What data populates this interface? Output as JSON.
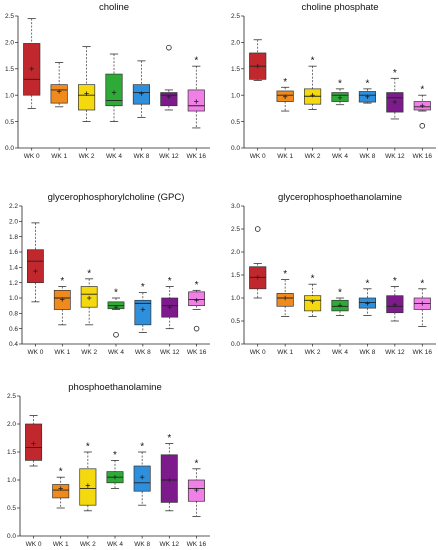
{
  "colors": {
    "WK 0": "#c0282d",
    "WK 1": "#f08a1c",
    "WK 2": "#f5d90f",
    "WK 4": "#2eaa37",
    "WK 8": "#2e8fdd",
    "WK 12": "#7d1a8c",
    "WK 16": "#f080e8"
  },
  "chart_data": [
    {
      "type": "box",
      "title": "choline",
      "categories": [
        "WK 0",
        "WK 1",
        "WK 2",
        "WK 4",
        "WK 8",
        "WK 12",
        "WK 16"
      ],
      "ylim": [
        0,
        2.5
      ],
      "yticks": [
        0,
        0.5,
        1,
        1.5,
        2,
        2.5
      ],
      "boxes": [
        {
          "min": 0.75,
          "q1": 1.0,
          "median": 1.3,
          "q3": 1.98,
          "max": 2.45,
          "mean": 1.5,
          "outliers": [],
          "significant": false
        },
        {
          "min": 0.78,
          "q1": 0.85,
          "median": 1.1,
          "q3": 1.2,
          "max": 1.62,
          "mean": 1.07,
          "outliers": [],
          "significant": false
        },
        {
          "min": 0.5,
          "q1": 0.72,
          "median": 1.0,
          "q3": 1.2,
          "max": 1.92,
          "mean": 1.03,
          "outliers": [],
          "significant": false
        },
        {
          "min": 0.5,
          "q1": 0.8,
          "median": 0.9,
          "q3": 1.4,
          "max": 1.78,
          "mean": 1.05,
          "outliers": [],
          "significant": false
        },
        {
          "min": 0.58,
          "q1": 0.83,
          "median": 1.05,
          "q3": 1.2,
          "max": 1.65,
          "mean": 1.03,
          "outliers": [],
          "significant": false
        },
        {
          "min": 0.72,
          "q1": 0.8,
          "median": 1.0,
          "q3": 1.05,
          "max": 1.1,
          "mean": 0.97,
          "outliers": [
            1.9
          ],
          "significant": false
        },
        {
          "min": 0.38,
          "q1": 0.7,
          "median": 0.8,
          "q3": 1.1,
          "max": 1.55,
          "mean": 0.88,
          "outliers": [],
          "significant": true
        }
      ]
    },
    {
      "type": "box",
      "title": "choline phosphate",
      "categories": [
        "WK 0",
        "WK 1",
        "WK 2",
        "WK 4",
        "WK 8",
        "WK 12",
        "WK 16"
      ],
      "ylim": [
        0,
        2.5
      ],
      "yticks": [
        0,
        0.5,
        1,
        1.5,
        2,
        2.5
      ],
      "boxes": [
        {
          "min": 1.28,
          "q1": 1.3,
          "median": 1.55,
          "q3": 1.8,
          "max": 2.05,
          "mean": 1.55,
          "outliers": [],
          "significant": false
        },
        {
          "min": 0.7,
          "q1": 0.88,
          "median": 1.0,
          "q3": 1.08,
          "max": 1.15,
          "mean": 0.97,
          "outliers": [],
          "significant": true
        },
        {
          "min": 0.73,
          "q1": 0.83,
          "median": 0.98,
          "q3": 1.12,
          "max": 1.55,
          "mean": 1.0,
          "outliers": [],
          "significant": true
        },
        {
          "min": 0.82,
          "q1": 0.88,
          "median": 1.0,
          "q3": 1.05,
          "max": 1.12,
          "mean": 0.95,
          "outliers": [],
          "significant": true
        },
        {
          "min": 0.85,
          "q1": 0.87,
          "median": 1.0,
          "q3": 1.07,
          "max": 1.12,
          "mean": 0.97,
          "outliers": [],
          "significant": true
        },
        {
          "min": 0.55,
          "q1": 0.68,
          "median": 0.95,
          "q3": 1.05,
          "max": 1.32,
          "mean": 0.87,
          "outliers": [],
          "significant": true
        },
        {
          "min": 0.7,
          "q1": 0.72,
          "median": 0.78,
          "q3": 0.88,
          "max": 1.0,
          "mean": 0.8,
          "outliers": [
            0.42
          ],
          "significant": true
        }
      ]
    },
    {
      "type": "box",
      "title": "glycerophosphorylcholine (GPC)",
      "categories": [
        "WK 0",
        "WK 1",
        "WK 2",
        "WK 4",
        "WK 8",
        "WK 12",
        "WK 16"
      ],
      "ylim": [
        0.4,
        2.2
      ],
      "yticks": [
        0.4,
        0.6,
        0.8,
        1.0,
        1.2,
        1.4,
        1.6,
        1.8,
        2.0,
        2.2
      ],
      "boxes": [
        {
          "min": 0.95,
          "q1": 1.2,
          "median": 1.48,
          "q3": 1.63,
          "max": 1.98,
          "mean": 1.35,
          "outliers": [],
          "significant": false
        },
        {
          "min": 0.65,
          "q1": 0.85,
          "median": 1.0,
          "q3": 1.1,
          "max": 1.15,
          "mean": 0.98,
          "outliers": [],
          "significant": true
        },
        {
          "min": 0.65,
          "q1": 0.88,
          "median": 1.05,
          "q3": 1.15,
          "max": 1.25,
          "mean": 1.0,
          "outliers": [],
          "significant": true
        },
        {
          "min": 0.85,
          "q1": 0.86,
          "median": 0.9,
          "q3": 0.95,
          "max": 1.0,
          "mean": 0.88,
          "outliers": [
            0.52
          ],
          "significant": true
        },
        {
          "min": 0.55,
          "q1": 0.65,
          "median": 0.93,
          "q3": 0.97,
          "max": 1.07,
          "mean": 0.85,
          "outliers": [],
          "significant": true
        },
        {
          "min": 0.6,
          "q1": 0.75,
          "median": 0.9,
          "q3": 1.0,
          "max": 1.15,
          "mean": 0.88,
          "outliers": [],
          "significant": true
        },
        {
          "min": 0.85,
          "q1": 0.9,
          "median": 0.98,
          "q3": 1.08,
          "max": 1.1,
          "mean": 0.97,
          "outliers": [
            0.6
          ],
          "significant": true
        }
      ]
    },
    {
      "type": "box",
      "title": "glycerophosphoethanolamine",
      "categories": [
        "WK 0",
        "WK 1",
        "WK 2",
        "WK 4",
        "WK 8",
        "WK 12",
        "WK 16"
      ],
      "ylim": [
        0,
        3
      ],
      "yticks": [
        0,
        0.5,
        1,
        1.5,
        2,
        2.5,
        3
      ],
      "boxes": [
        {
          "min": 1.0,
          "q1": 1.2,
          "median": 1.45,
          "q3": 1.68,
          "max": 1.75,
          "mean": 1.45,
          "outliers": [
            2.5
          ],
          "significant": false
        },
        {
          "min": 0.6,
          "q1": 0.82,
          "median": 1.0,
          "q3": 1.1,
          "max": 1.4,
          "mean": 1.0,
          "outliers": [],
          "significant": true
        },
        {
          "min": 0.6,
          "q1": 0.72,
          "median": 0.95,
          "q3": 1.05,
          "max": 1.3,
          "mean": 0.92,
          "outliers": [],
          "significant": true
        },
        {
          "min": 0.62,
          "q1": 0.72,
          "median": 0.82,
          "q3": 0.95,
          "max": 1.0,
          "mean": 0.84,
          "outliers": [],
          "significant": true
        },
        {
          "min": 0.62,
          "q1": 0.78,
          "median": 0.9,
          "q3": 1.0,
          "max": 1.2,
          "mean": 0.88,
          "outliers": [],
          "significant": true
        },
        {
          "min": 0.5,
          "q1": 0.68,
          "median": 0.82,
          "q3": 1.05,
          "max": 1.25,
          "mean": 0.85,
          "outliers": [],
          "significant": true
        },
        {
          "min": 0.38,
          "q1": 0.75,
          "median": 0.88,
          "q3": 1.0,
          "max": 1.2,
          "mean": 0.88,
          "outliers": [],
          "significant": true
        }
      ]
    },
    {
      "type": "box",
      "title": "phosphoethanolamine",
      "categories": [
        "WK 0",
        "WK 1",
        "WK 2",
        "WK 4",
        "WK 8",
        "WK 12",
        "WK 16"
      ],
      "ylim": [
        0,
        2.5
      ],
      "yticks": [
        0,
        0.5,
        1,
        1.5,
        2,
        2.5
      ],
      "boxes": [
        {
          "min": 1.25,
          "q1": 1.35,
          "median": 1.58,
          "q3": 2.0,
          "max": 2.15,
          "mean": 1.65,
          "outliers": [],
          "significant": false
        },
        {
          "min": 0.5,
          "q1": 0.68,
          "median": 0.82,
          "q3": 0.92,
          "max": 1.05,
          "mean": 0.85,
          "outliers": [],
          "significant": true
        },
        {
          "min": 0.45,
          "q1": 0.55,
          "median": 0.85,
          "q3": 1.2,
          "max": 1.5,
          "mean": 0.9,
          "outliers": [],
          "significant": true
        },
        {
          "min": 0.85,
          "q1": 0.95,
          "median": 1.05,
          "q3": 1.15,
          "max": 1.35,
          "mean": 1.05,
          "outliers": [],
          "significant": true
        },
        {
          "min": 0.55,
          "q1": 0.8,
          "median": 0.95,
          "q3": 1.25,
          "max": 1.5,
          "mean": 1.05,
          "outliers": [],
          "significant": true
        },
        {
          "min": 0.45,
          "q1": 0.6,
          "median": 1.0,
          "q3": 1.45,
          "max": 1.65,
          "mean": 1.0,
          "outliers": [],
          "significant": true
        },
        {
          "min": 0.35,
          "q1": 0.62,
          "median": 0.85,
          "q3": 1.0,
          "max": 1.2,
          "mean": 0.82,
          "outliers": [],
          "significant": true
        }
      ]
    }
  ]
}
